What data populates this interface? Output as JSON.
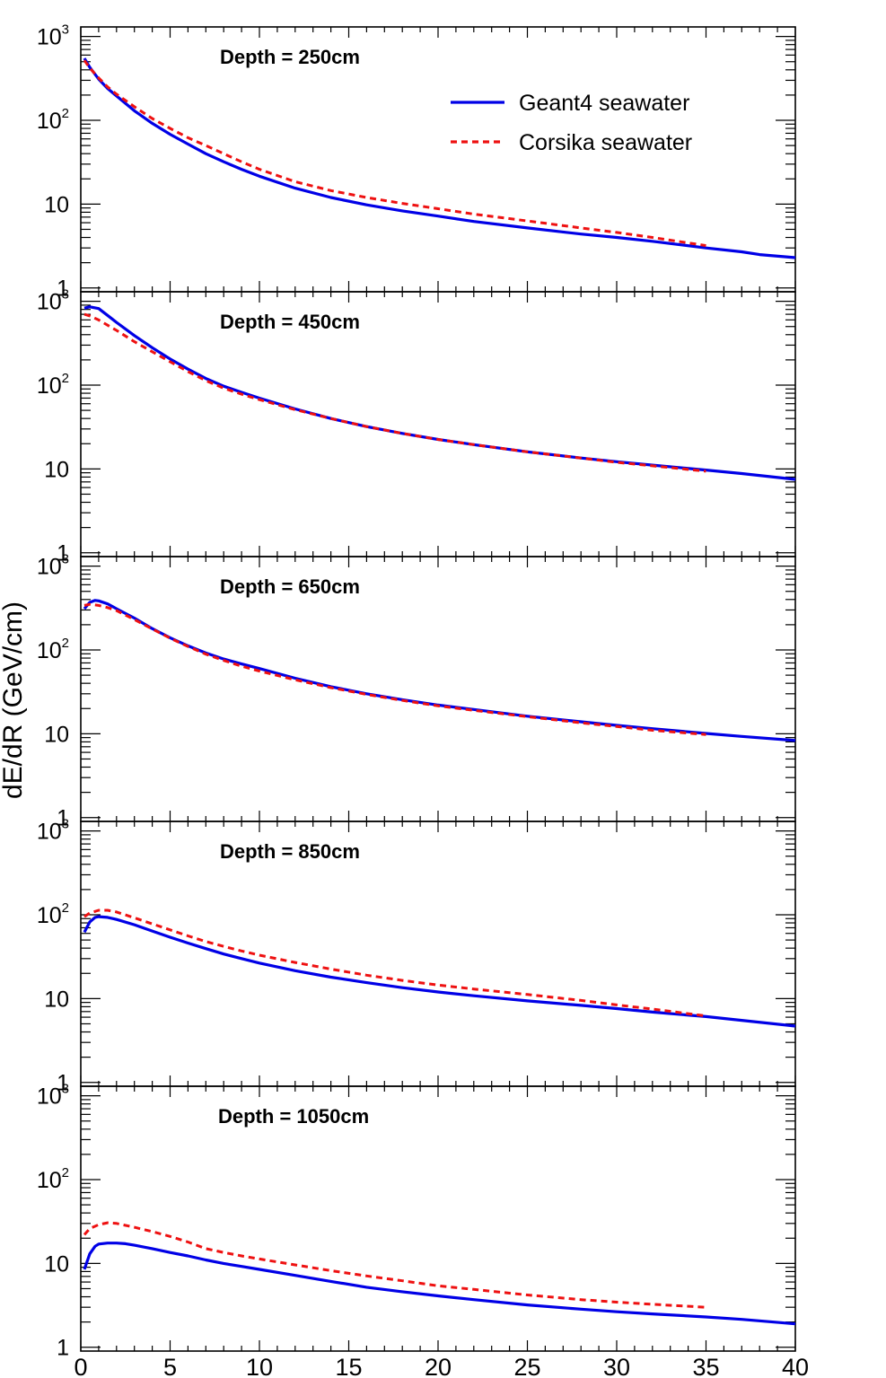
{
  "figure": {
    "ylabel": "dE/dR (GeV/cm)"
  },
  "legend": {
    "entries": [
      {
        "label": "Geant4  seawater",
        "color": "#0000e6",
        "style": "solid"
      },
      {
        "label": "Corsika seawater",
        "color": "#ee1111",
        "style": "dashed"
      }
    ],
    "placement": "top-right of first panel"
  },
  "chart_data": [
    {
      "type": "line",
      "title": "Depth = 250cm",
      "xlim": [
        0,
        40
      ],
      "ylim": [
        0.9,
        1300
      ],
      "yscale": "log",
      "yticklabels": [
        "1",
        "10",
        "10^2",
        "10^3"
      ],
      "xticklabels": [],
      "series": [
        {
          "name": "Geant4  seawater",
          "color": "#0000e6",
          "style": "solid",
          "x": [
            0.2,
            0.5,
            1,
            1.5,
            2,
            3,
            4,
            5,
            6,
            7,
            8,
            9,
            10,
            12,
            14,
            16,
            18,
            20,
            22,
            25,
            28,
            30,
            32,
            35,
            37,
            38,
            40
          ],
          "y": [
            550,
            430,
            310,
            240,
            195,
            130,
            92,
            68,
            52,
            40,
            32,
            26,
            21.5,
            15.5,
            12,
            9.8,
            8.3,
            7.2,
            6.2,
            5.2,
            4.4,
            4.0,
            3.6,
            3.0,
            2.7,
            2.5,
            2.3
          ]
        },
        {
          "name": "Corsika seawater",
          "color": "#ee1111",
          "style": "dashed",
          "x": [
            0.2,
            0.5,
            1,
            1.5,
            2,
            3,
            4,
            5,
            6,
            7,
            8,
            9,
            10,
            12,
            14,
            16,
            18,
            20,
            22,
            25,
            28,
            30,
            32,
            35
          ],
          "y": [
            520,
            420,
            320,
            250,
            205,
            145,
            105,
            80,
            62,
            50,
            40,
            32,
            26,
            18.5,
            14.5,
            12,
            10.2,
            8.8,
            7.6,
            6.3,
            5.2,
            4.6,
            4.0,
            3.2
          ]
        }
      ]
    },
    {
      "type": "line",
      "title": "Depth = 450cm",
      "xlim": [
        0,
        40
      ],
      "ylim": [
        0.9,
        1300
      ],
      "yscale": "log",
      "yticklabels": [
        "1",
        "10",
        "10^2",
        "10^3"
      ],
      "xticklabels": [],
      "series": [
        {
          "name": "Geant4  seawater",
          "color": "#0000e6",
          "style": "solid",
          "x": [
            0.2,
            0.5,
            1,
            1.5,
            2,
            3,
            4,
            5,
            6,
            7,
            8,
            9,
            10,
            12,
            14,
            16,
            18,
            20,
            22,
            25,
            28,
            30,
            32,
            35,
            37,
            40
          ],
          "y": [
            830,
            860,
            820,
            680,
            560,
            390,
            280,
            205,
            155,
            120,
            97,
            82,
            70,
            52,
            40,
            32,
            26.5,
            22.5,
            19.5,
            16,
            13.5,
            12.2,
            11.1,
            9.7,
            8.8,
            7.5
          ]
        },
        {
          "name": "Corsika seawater",
          "color": "#ee1111",
          "style": "dashed",
          "x": [
            0.2,
            0.5,
            1,
            1.5,
            2,
            3,
            4,
            5,
            6,
            7,
            8,
            9,
            10,
            12,
            14,
            16,
            18,
            20,
            22,
            25,
            28,
            30,
            32,
            35
          ],
          "y": [
            700,
            670,
            600,
            520,
            450,
            330,
            250,
            190,
            145,
            113,
            92,
            78,
            67,
            51,
            40,
            32,
            26.5,
            22.5,
            19.5,
            16,
            13.5,
            12,
            10.9,
            9.4
          ]
        }
      ]
    },
    {
      "type": "line",
      "title": "Depth = 650cm",
      "xlim": [
        0,
        40
      ],
      "ylim": [
        0.9,
        1300
      ],
      "yscale": "log",
      "yticklabels": [
        "1",
        "10",
        "10^2",
        "10^3"
      ],
      "xticklabels": [],
      "series": [
        {
          "name": "Geant4  seawater",
          "color": "#0000e6",
          "style": "solid",
          "x": [
            0.2,
            0.5,
            0.8,
            1,
            1.5,
            2,
            3,
            4,
            5,
            6,
            7,
            8,
            9,
            10,
            12,
            14,
            16,
            18,
            20,
            22,
            25,
            28,
            30,
            32,
            35,
            37,
            40
          ],
          "y": [
            310,
            370,
            390,
            385,
            355,
            310,
            240,
            180,
            140,
            112,
            92,
            78,
            68,
            60,
            46,
            36.5,
            30,
            25.5,
            22,
            19.5,
            16.2,
            13.9,
            12.6,
            11.5,
            10.1,
            9.3,
            8.3
          ]
        },
        {
          "name": "Corsika seawater",
          "color": "#ee1111",
          "style": "dashed",
          "x": [
            0.2,
            0.5,
            1,
            1.5,
            2,
            3,
            4,
            5,
            6,
            7,
            8,
            9,
            10,
            12,
            14,
            16,
            18,
            20,
            22,
            25,
            28,
            30,
            32,
            35
          ],
          "y": [
            340,
            350,
            340,
            320,
            295,
            230,
            178,
            138,
            110,
            89,
            75,
            64,
            56,
            44,
            35.5,
            29.5,
            25,
            21.5,
            19,
            16,
            13.5,
            12.2,
            11,
            9.8
          ]
        }
      ]
    },
    {
      "type": "line",
      "title": "Depth = 850cm",
      "xlim": [
        0,
        40
      ],
      "ylim": [
        0.9,
        1300
      ],
      "yscale": "log",
      "yticklabels": [
        "1",
        "10",
        "10^2",
        "10^3"
      ],
      "xticklabels": [],
      "series": [
        {
          "name": "Geant4  seawater",
          "color": "#0000e6",
          "style": "solid",
          "x": [
            0.2,
            0.5,
            0.8,
            1,
            1.5,
            2,
            3,
            4,
            5,
            6,
            7,
            8,
            9,
            10,
            12,
            14,
            16,
            18,
            20,
            22,
            25,
            28,
            30,
            32,
            35,
            37,
            40
          ],
          "y": [
            62,
            82,
            93,
            95,
            93,
            88,
            76,
            64,
            54,
            46,
            39.5,
            34,
            30,
            26.5,
            21.5,
            18,
            15.5,
            13.5,
            12,
            10.8,
            9.4,
            8.3,
            7.6,
            6.9,
            6.1,
            5.5,
            4.7
          ]
        },
        {
          "name": "Corsika seawater",
          "color": "#ee1111",
          "style": "dashed",
          "x": [
            0.2,
            0.5,
            1,
            1.5,
            2,
            3,
            4,
            5,
            6,
            7,
            8,
            9,
            10,
            12,
            14,
            16,
            18,
            20,
            22,
            25,
            28,
            30,
            32,
            35
          ],
          "y": [
            95,
            105,
            113,
            113,
            108,
            92,
            78,
            66,
            56,
            48,
            42,
            37,
            33,
            27,
            22.5,
            19,
            16.5,
            14.5,
            13,
            11.2,
            9.5,
            8.4,
            7.5,
            6.2
          ]
        }
      ]
    },
    {
      "type": "line",
      "title": "Depth = 1050cm",
      "xlim": [
        0,
        40
      ],
      "ylim": [
        0.9,
        1300
      ],
      "yscale": "log",
      "yticklabels": [
        "1",
        "10",
        "10^2",
        "10^3"
      ],
      "xticklabels": [
        "0",
        "5",
        "10",
        "15",
        "20",
        "25",
        "30",
        "35",
        "40"
      ],
      "series": [
        {
          "name": "Geant4  seawater",
          "color": "#0000e6",
          "style": "solid",
          "x": [
            0.2,
            0.5,
            0.8,
            1,
            1.5,
            2,
            2.5,
            3,
            4,
            5,
            6,
            7,
            8,
            9,
            10,
            12,
            14,
            16,
            18,
            20,
            22,
            25,
            28,
            30,
            32,
            35,
            37,
            40
          ],
          "y": [
            8.5,
            13,
            16,
            17,
            17.5,
            17.5,
            17.2,
            16.5,
            15,
            13.5,
            12.3,
            11,
            10,
            9.2,
            8.5,
            7.2,
            6.1,
            5.2,
            4.6,
            4.1,
            3.7,
            3.2,
            2.85,
            2.65,
            2.5,
            2.3,
            2.15,
            1.9
          ]
        },
        {
          "name": "Corsika seawater",
          "color": "#ee1111",
          "style": "dashed",
          "x": [
            0.2,
            0.5,
            1,
            1.5,
            2,
            3,
            4,
            5,
            6,
            7,
            8,
            9,
            10,
            12,
            14,
            16,
            18,
            20,
            22,
            25,
            28,
            30,
            32,
            35
          ],
          "y": [
            22,
            26,
            29,
            30.5,
            30,
            27,
            24,
            21,
            18,
            15,
            13.5,
            12.3,
            11.3,
            9.6,
            8.2,
            7.1,
            6.2,
            5.4,
            4.9,
            4.2,
            3.7,
            3.45,
            3.25,
            3.0
          ]
        }
      ]
    }
  ]
}
